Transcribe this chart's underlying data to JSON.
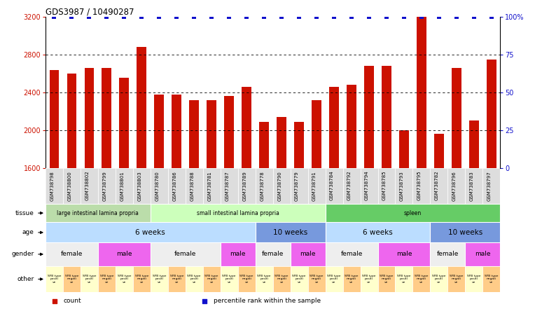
{
  "title": "GDS3987 / 10490287",
  "samples": [
    "GSM738798",
    "GSM738800",
    "GSM738802",
    "GSM738799",
    "GSM738801",
    "GSM738803",
    "GSM738780",
    "GSM738786",
    "GSM738788",
    "GSM738781",
    "GSM738787",
    "GSM738789",
    "GSM738778",
    "GSM738790",
    "GSM738779",
    "GSM738791",
    "GSM738784",
    "GSM738792",
    "GSM738794",
    "GSM738785",
    "GSM738793",
    "GSM738795",
    "GSM738782",
    "GSM738796",
    "GSM738783",
    "GSM738797"
  ],
  "counts": [
    2640,
    2600,
    2660,
    2660,
    2560,
    2880,
    2380,
    2380,
    2320,
    2320,
    2360,
    2460,
    2090,
    2140,
    2090,
    2320,
    2460,
    2480,
    2680,
    2680,
    2000,
    3200,
    1960,
    2660,
    2100,
    2750
  ],
  "percentile": [
    100,
    100,
    100,
    100,
    100,
    100,
    100,
    100,
    100,
    100,
    100,
    100,
    100,
    100,
    100,
    100,
    100,
    100,
    100,
    100,
    100,
    100,
    100,
    100,
    100,
    100
  ],
  "ylim_left": [
    1600,
    3200
  ],
  "ylim_right": [
    0,
    100
  ],
  "bar_color": "#cc1100",
  "dot_color": "#1111cc",
  "bg_color": "#ffffff",
  "grid_pcts": [
    25,
    50,
    75
  ],
  "tissue_groups": [
    {
      "label": "large intestinal lamina propria",
      "start": 0,
      "end": 5,
      "color": "#bbddaa"
    },
    {
      "label": "small intestinal lamina propria",
      "start": 6,
      "end": 15,
      "color": "#ccffbb"
    },
    {
      "label": "spleen",
      "start": 16,
      "end": 25,
      "color": "#66cc66"
    }
  ],
  "age_groups": [
    {
      "label": "6 weeks",
      "start": 0,
      "end": 11,
      "color": "#bbddff"
    },
    {
      "label": "10 weeks",
      "start": 12,
      "end": 15,
      "color": "#7799dd"
    },
    {
      "label": "6 weeks",
      "start": 16,
      "end": 21,
      "color": "#bbddff"
    },
    {
      "label": "10 weeks",
      "start": 22,
      "end": 25,
      "color": "#7799dd"
    }
  ],
  "gender_groups": [
    {
      "label": "female",
      "start": 0,
      "end": 2,
      "color": "#eeeeee"
    },
    {
      "label": "male",
      "start": 3,
      "end": 5,
      "color": "#ee66ee"
    },
    {
      "label": "female",
      "start": 6,
      "end": 9,
      "color": "#eeeeee"
    },
    {
      "label": "male",
      "start": 10,
      "end": 11,
      "color": "#ee66ee"
    },
    {
      "label": "female",
      "start": 12,
      "end": 13,
      "color": "#eeeeee"
    },
    {
      "label": "male",
      "start": 14,
      "end": 15,
      "color": "#ee66ee"
    },
    {
      "label": "female",
      "start": 16,
      "end": 18,
      "color": "#eeeeee"
    },
    {
      "label": "male",
      "start": 19,
      "end": 21,
      "color": "#ee66ee"
    },
    {
      "label": "female",
      "start": 22,
      "end": 23,
      "color": "#eeeeee"
    },
    {
      "label": "male",
      "start": 24,
      "end": 25,
      "color": "#ee66ee"
    }
  ],
  "other_label_even": "SFB type\npositi\nve",
  "other_label_odd": "SFB type\nnegati\nve",
  "other_color_even": "#ffffcc",
  "other_color_odd": "#ffcc88",
  "legend_items": [
    {
      "label": "count",
      "color": "#cc1100"
    },
    {
      "label": "percentile rank within the sample",
      "color": "#1111cc"
    }
  ],
  "label_fontsize": 6.5,
  "tick_fontsize": 7.0,
  "sample_fontsize": 5.0,
  "bar_width": 0.55
}
